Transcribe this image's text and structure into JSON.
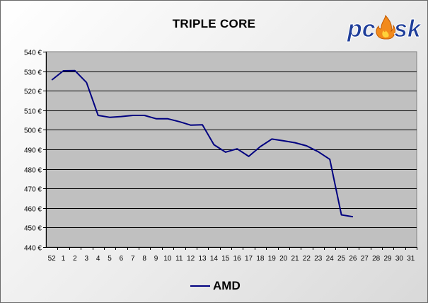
{
  "logo": {
    "text": "pcask",
    "icon": "flame-icon"
  },
  "colors": {
    "line": "#000080",
    "plot_bg": "#c0c0c0",
    "grid": "#000000",
    "logo_blue": "#1f3e9a",
    "flame_orange": "#f28a1c",
    "flame_yellow": "#ffd23a"
  },
  "chart_data": {
    "type": "line",
    "title": "TRIPLE CORE",
    "xlabel": "",
    "ylabel": "",
    "categories": [
      "52",
      "1",
      "2",
      "3",
      "4",
      "5",
      "6",
      "7",
      "8",
      "9",
      "10",
      "11",
      "12",
      "13",
      "14",
      "15",
      "16",
      "17",
      "18",
      "19",
      "20",
      "21",
      "22",
      "23",
      "24",
      "25",
      "26",
      "27",
      "28",
      "29",
      "30",
      "31"
    ],
    "yticks": [
      "540 €",
      "530 €",
      "520 €",
      "510 €",
      "500 €",
      "490 €",
      "480 €",
      "470 €",
      "460 €",
      "450 €",
      "440 €"
    ],
    "ylim": [
      440,
      540
    ],
    "grid": "horizontal",
    "legend_position": "bottom",
    "series": [
      {
        "name": "AMD",
        "values": [
          525.5,
          530.2,
          530.3,
          524.2,
          507.4,
          506.4,
          506.8,
          507.4,
          507.4,
          505.7,
          505.7,
          504.2,
          502.4,
          502.6,
          492.4,
          488.6,
          490.3,
          486.4,
          491.4,
          495.3,
          494.4,
          493.4,
          491.8,
          488.8,
          484.9,
          456.5,
          455.5,
          null,
          null,
          null,
          null,
          null
        ]
      }
    ]
  }
}
